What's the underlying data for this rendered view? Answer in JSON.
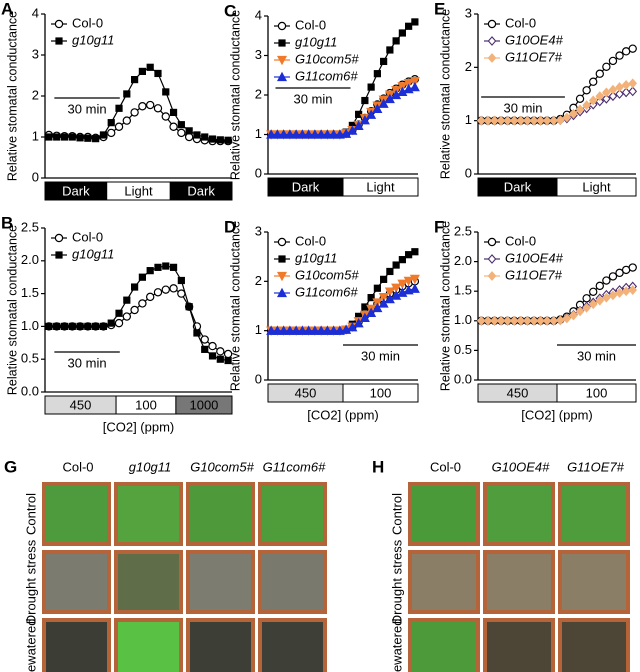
{
  "chart_data": [
    {
      "type": "line",
      "panel": "A",
      "ylabel": "Relative stomatal conductance",
      "ylim": [
        0,
        4
      ],
      "yticks": [
        0,
        1,
        2,
        3,
        4
      ],
      "annotation": "30 min",
      "segments": [
        {
          "label": "Dark",
          "fill": "#000000"
        },
        {
          "label": "Light",
          "fill": "#ffffff"
        },
        {
          "label": "Dark",
          "fill": "#000000"
        }
      ],
      "series": [
        {
          "name": "Col-0",
          "color": "#000000",
          "marker": "open-circle",
          "values": [
            1.05,
            1.03,
            1.02,
            1.02,
            1.0,
            1.0,
            0.98,
            1.0,
            1.1,
            1.25,
            1.4,
            1.6,
            1.75,
            1.78,
            1.7,
            1.5,
            1.25,
            1.1,
            1.0,
            0.95,
            0.92,
            0.9,
            0.9,
            0.9
          ]
        },
        {
          "name": "g10g11",
          "color": "#000000",
          "marker": "square",
          "values": [
            1.0,
            1.0,
            1.0,
            1.0,
            0.98,
            0.97,
            0.96,
            1.05,
            1.35,
            1.7,
            2.05,
            2.4,
            2.6,
            2.7,
            2.55,
            2.1,
            1.6,
            1.3,
            1.15,
            1.05,
            1.0,
            0.95,
            0.93,
            0.92
          ]
        }
      ]
    },
    {
      "type": "line",
      "panel": "B",
      "ylabel": "Relative stomatal conductance",
      "ylim": [
        0,
        2.5
      ],
      "yticks": [
        {
          "value": 0,
          "label": "0.0"
        },
        0.5,
        {
          "value": 1,
          "label": "1.0"
        },
        1.5,
        {
          "value": 2,
          "label": "2.0"
        },
        2.5
      ],
      "annotation": "30 min",
      "xlabel": "[CO2] (ppm)",
      "segments": [
        {
          "label": "450",
          "fill": "#d9d9d9"
        },
        {
          "label": "100",
          "fill": "#ffffff"
        },
        {
          "label": "1000",
          "fill": "#777777"
        }
      ],
      "series": [
        {
          "name": "Col-0",
          "color": "#000000",
          "marker": "open-circle",
          "values": [
            1.0,
            1.0,
            1.0,
            1.0,
            1.0,
            1.0,
            1.0,
            1.0,
            1.02,
            1.05,
            1.15,
            1.25,
            1.35,
            1.45,
            1.52,
            1.56,
            1.58,
            1.5,
            1.3,
            1.0,
            0.8,
            0.7,
            0.62,
            0.58
          ]
        },
        {
          "name": "g10g11",
          "color": "#000000",
          "marker": "square",
          "values": [
            1.0,
            1.0,
            1.0,
            1.0,
            1.0,
            1.0,
            1.0,
            1.0,
            1.05,
            1.2,
            1.4,
            1.6,
            1.75,
            1.85,
            1.9,
            1.92,
            1.9,
            1.7,
            1.3,
            0.9,
            0.65,
            0.55,
            0.5,
            0.48
          ]
        }
      ]
    },
    {
      "type": "line",
      "panel": "C",
      "ylabel": "Relative stomatal conductance",
      "ylim": [
        0,
        4
      ],
      "yticks": [
        0,
        1,
        2,
        3,
        4
      ],
      "annotation": "30 min",
      "segments": [
        {
          "label": "Dark",
          "fill": "#000000"
        },
        {
          "label": "Light",
          "fill": "#ffffff"
        }
      ],
      "series": [
        {
          "name": "Col-0",
          "color": "#000000",
          "marker": "open-circle",
          "values": [
            1.0,
            1.0,
            1.0,
            1.0,
            1.0,
            1.0,
            1.0,
            1.0,
            1.0,
            1.0,
            1.0,
            1.0,
            1.03,
            1.11,
            1.25,
            1.42,
            1.59,
            1.76,
            1.91,
            2.05,
            2.16,
            2.26,
            2.34,
            2.4
          ]
        },
        {
          "name": "g10g11",
          "color": "#000000",
          "marker": "square",
          "values": [
            1.0,
            1.0,
            1.0,
            1.0,
            1.0,
            1.0,
            1.0,
            1.0,
            1.0,
            1.0,
            1.0,
            1.0,
            1.06,
            1.23,
            1.51,
            1.86,
            2.2,
            2.54,
            2.85,
            3.14,
            3.37,
            3.57,
            3.74,
            3.85
          ]
        },
        {
          "name": "G10com5#",
          "color": "#f07a2a",
          "marker": "triangle-down",
          "values": [
            1.0,
            1.0,
            1.0,
            1.0,
            1.0,
            1.0,
            1.0,
            1.0,
            1.0,
            1.0,
            1.0,
            1.0,
            1.03,
            1.11,
            1.24,
            1.41,
            1.57,
            1.73,
            1.88,
            2.01,
            2.12,
            2.22,
            2.3,
            2.35
          ]
        },
        {
          "name": "G11com6#",
          "color": "#1c2fd6",
          "marker": "triangle-up",
          "values": [
            1.0,
            1.0,
            1.0,
            1.0,
            1.0,
            1.0,
            1.0,
            1.0,
            1.0,
            1.0,
            1.0,
            1.0,
            1.02,
            1.1,
            1.22,
            1.36,
            1.5,
            1.65,
            1.78,
            1.9,
            2.0,
            2.08,
            2.15,
            2.2
          ]
        }
      ]
    },
    {
      "type": "line",
      "panel": "D",
      "ylabel": "Relative stomatal conductance",
      "ylim": [
        0,
        3
      ],
      "yticks": [
        0,
        1,
        2,
        3
      ],
      "annotation": "30 min",
      "xlabel": "[CO2] (ppm)",
      "segments": [
        {
          "label": "450",
          "fill": "#d9d9d9"
        },
        {
          "label": "100",
          "fill": "#ffffff"
        }
      ],
      "series": [
        {
          "name": "Col-0",
          "color": "#000000",
          "marker": "open-circle",
          "values": [
            1.0,
            1.0,
            1.0,
            1.0,
            1.0,
            1.0,
            1.0,
            1.0,
            1.0,
            1.0,
            1.0,
            1.0,
            1.02,
            1.08,
            1.18,
            1.3,
            1.42,
            1.54,
            1.65,
            1.75,
            1.83,
            1.9,
            1.96,
            2.0
          ]
        },
        {
          "name": "g10g11",
          "color": "#000000",
          "marker": "square",
          "values": [
            1.0,
            1.0,
            1.0,
            1.0,
            1.0,
            1.0,
            1.0,
            1.0,
            1.0,
            1.0,
            1.0,
            1.0,
            1.03,
            1.13,
            1.29,
            1.48,
            1.67,
            1.86,
            2.04,
            2.2,
            2.33,
            2.44,
            2.54,
            2.6
          ]
        },
        {
          "name": "G10com5#",
          "color": "#f07a2a",
          "marker": "triangle-down",
          "values": [
            1.0,
            1.0,
            1.0,
            1.0,
            1.0,
            1.0,
            1.0,
            1.0,
            1.0,
            1.0,
            1.0,
            1.0,
            1.02,
            1.08,
            1.19,
            1.32,
            1.44,
            1.57,
            1.68,
            1.79,
            1.87,
            1.95,
            2.01,
            2.05
          ]
        },
        {
          "name": "G11com6#",
          "color": "#1c2fd6",
          "marker": "triangle-up",
          "values": [
            1.0,
            1.0,
            1.0,
            1.0,
            1.0,
            1.0,
            1.0,
            1.0,
            1.0,
            1.0,
            1.0,
            1.0,
            1.02,
            1.07,
            1.15,
            1.26,
            1.36,
            1.46,
            1.55,
            1.64,
            1.71,
            1.77,
            1.82,
            1.85
          ]
        }
      ]
    },
    {
      "type": "line",
      "panel": "E",
      "ylabel": "Relative stomatal conductance",
      "ylim": [
        0,
        3
      ],
      "yticks": [
        0,
        1,
        2,
        3
      ],
      "annotation": "30 min",
      "segments": [
        {
          "label": "Dark",
          "fill": "#000000"
        },
        {
          "label": "Light",
          "fill": "#ffffff"
        }
      ],
      "series": [
        {
          "name": "Col-0",
          "color": "#000000",
          "marker": "open-circle",
          "values": [
            1.0,
            1.0,
            1.0,
            1.0,
            1.0,
            1.0,
            1.0,
            1.0,
            1.0,
            1.0,
            1.0,
            1.0,
            1.03,
            1.11,
            1.24,
            1.41,
            1.57,
            1.73,
            1.88,
            2.01,
            2.12,
            2.22,
            2.3,
            2.35
          ]
        },
        {
          "name": "G10OE4#",
          "color": "#4b2c6e",
          "marker": "open-diamond",
          "values": [
            1.0,
            1.0,
            1.0,
            1.0,
            1.0,
            1.0,
            1.0,
            1.0,
            1.0,
            1.0,
            1.0,
            1.0,
            1.01,
            1.04,
            1.1,
            1.17,
            1.23,
            1.3,
            1.36,
            1.41,
            1.46,
            1.5,
            1.53,
            1.55
          ]
        },
        {
          "name": "G11OE7#",
          "color": "#f2b27a",
          "marker": "diamond",
          "values": [
            1.0,
            1.0,
            1.0,
            1.0,
            1.0,
            1.0,
            1.0,
            1.0,
            1.0,
            1.0,
            1.0,
            1.0,
            1.01,
            1.06,
            1.13,
            1.21,
            1.29,
            1.38,
            1.46,
            1.53,
            1.58,
            1.63,
            1.67,
            1.7
          ]
        }
      ]
    },
    {
      "type": "line",
      "panel": "F",
      "ylabel": "Relative stomatal conductance",
      "ylim": [
        0,
        2.5
      ],
      "yticks": [
        {
          "value": 0,
          "label": "0.0"
        },
        0.5,
        {
          "value": 1,
          "label": "1.0"
        },
        1.5,
        {
          "value": 2,
          "label": "2.0"
        },
        2.5
      ],
      "annotation": "30 min",
      "xlabel": "[CO2] (ppm)",
      "segments": [
        {
          "label": "450",
          "fill": "#d9d9d9"
        },
        {
          "label": "100",
          "fill": "#ffffff"
        }
      ],
      "series": [
        {
          "name": "Col-0",
          "color": "#000000",
          "marker": "open-circle",
          "values": [
            1.0,
            1.0,
            1.0,
            1.0,
            1.0,
            1.0,
            1.0,
            1.0,
            1.0,
            1.0,
            1.0,
            1.0,
            1.02,
            1.07,
            1.16,
            1.27,
            1.38,
            1.49,
            1.59,
            1.68,
            1.75,
            1.81,
            1.86,
            1.9
          ]
        },
        {
          "name": "G10OE4#",
          "color": "#4b2c6e",
          "marker": "open-diamond",
          "values": [
            1.0,
            1.0,
            1.0,
            1.0,
            1.0,
            1.0,
            1.0,
            1.0,
            1.0,
            1.0,
            1.0,
            1.0,
            1.01,
            1.05,
            1.1,
            1.17,
            1.24,
            1.31,
            1.38,
            1.44,
            1.48,
            1.52,
            1.56,
            1.58
          ]
        },
        {
          "name": "G11OE7#",
          "color": "#f2b27a",
          "marker": "diamond",
          "values": [
            1.0,
            1.0,
            1.0,
            1.0,
            1.0,
            1.0,
            1.0,
            1.0,
            1.0,
            1.0,
            1.0,
            1.0,
            1.01,
            1.04,
            1.09,
            1.16,
            1.22,
            1.28,
            1.34,
            1.39,
            1.43,
            1.47,
            1.5,
            1.52
          ]
        }
      ]
    }
  ],
  "photo_panels": [
    {
      "panel": "G",
      "columns": [
        "Col-0",
        "g10g11",
        "G10com5#",
        "G11com6#"
      ],
      "rows": [
        "Control",
        "Drought stress",
        "Rewatered"
      ]
    },
    {
      "panel": "H",
      "columns": [
        "Col-0",
        "G10OE4#",
        "G11OE7#"
      ],
      "rows": [
        "Control",
        "Drought stress",
        "Rewatered"
      ]
    }
  ]
}
